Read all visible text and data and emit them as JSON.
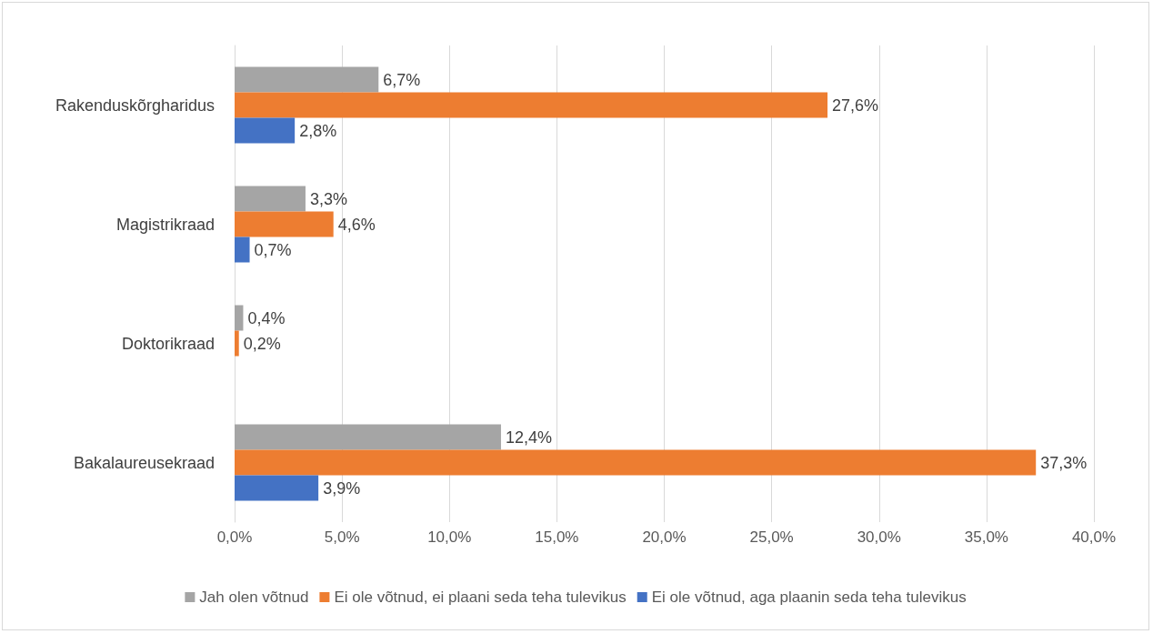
{
  "chart_data": {
    "type": "bar",
    "orientation": "horizontal",
    "categories": [
      "Rakenduskõrgharidus",
      "Magistrikraad",
      "Doktorikraad",
      "Bakalaureusekraad"
    ],
    "series": [
      {
        "name": "Jah olen võtnud",
        "color": "#a5a5a5",
        "values": [
          6.7,
          3.3,
          0.4,
          12.4
        ],
        "value_labels": [
          "6,7%",
          "3,3%",
          "0,4%",
          "12,4%"
        ]
      },
      {
        "name": "Ei ole võtnud, ei plaani seda teha tulevikus",
        "color": "#ed7d31",
        "values": [
          27.6,
          4.6,
          0.2,
          37.3
        ],
        "value_labels": [
          "27,6%",
          "4,6%",
          "0,2%",
          "37,3%"
        ]
      },
      {
        "name": "Ei ole võtnud, aga plaanin seda teha tulevikus",
        "color": "#4472c4",
        "values": [
          2.8,
          0.7,
          null,
          3.9
        ],
        "value_labels": [
          "2,8%",
          "0,7%",
          null,
          "3,9%"
        ]
      }
    ],
    "xlim": [
      0,
      40
    ],
    "xticks": [
      {
        "value": 0,
        "label": "0,0%"
      },
      {
        "value": 5,
        "label": "5,0%"
      },
      {
        "value": 10,
        "label": "10,0%"
      },
      {
        "value": 15,
        "label": "15,0%"
      },
      {
        "value": 20,
        "label": "20,0%"
      },
      {
        "value": 25,
        "label": "25,0%"
      },
      {
        "value": 30,
        "label": "30,0%"
      },
      {
        "value": 35,
        "label": "35,0%"
      },
      {
        "value": 40,
        "label": "40,0%"
      }
    ],
    "grid": "x",
    "legend": "bottom"
  }
}
